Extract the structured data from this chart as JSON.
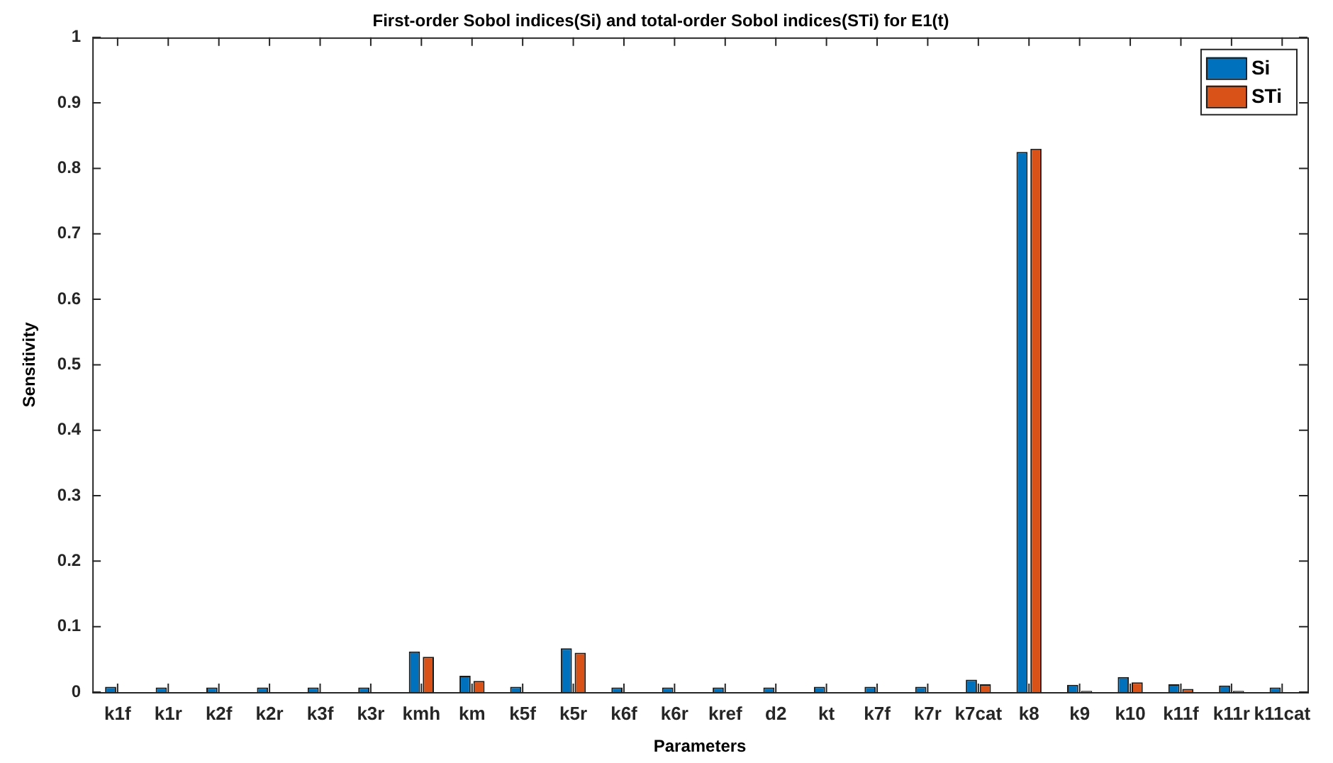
{
  "chart_data": {
    "type": "bar",
    "title": "First-order Sobol indices(Si) and total-order Sobol indices(STi) for E1(t)",
    "xlabel": "Parameters",
    "ylabel": "Sensitivity",
    "categories": [
      "k1f",
      "k1r",
      "k2f",
      "k2r",
      "k3f",
      "k3r",
      "kmh",
      "km",
      "k5f",
      "k5r",
      "k6f",
      "k6r",
      "kref",
      "d2",
      "kt",
      "k7f",
      "k7r",
      "k7cat",
      "k8",
      "k9",
      "k10",
      "k11f",
      "k11r",
      "k11cat"
    ],
    "series": [
      {
        "name": "Si",
        "color": "#0072bd",
        "values": [
          0.008,
          0.007,
          0.007,
          0.007,
          0.007,
          0.007,
          0.062,
          0.025,
          0.008,
          0.067,
          0.007,
          0.007,
          0.007,
          0.007,
          0.008,
          0.008,
          0.008,
          0.019,
          0.825,
          0.011,
          0.023,
          0.012,
          0.01,
          0.007
        ]
      },
      {
        "name": "STi",
        "color": "#d95319",
        "values": [
          0,
          0,
          0,
          0,
          0,
          0,
          0.054,
          0.017,
          0,
          0.06,
          0,
          0,
          0,
          0,
          0,
          0,
          0,
          0.012,
          0.83,
          0.002,
          0.015,
          0.005,
          0.002,
          0
        ]
      }
    ],
    "ylim": [
      0,
      1
    ],
    "yticks": [
      0,
      0.1,
      0.2,
      0.3,
      0.4,
      0.5,
      0.6,
      0.7,
      0.8,
      0.9,
      1
    ],
    "grid": false,
    "legend": "top right"
  }
}
